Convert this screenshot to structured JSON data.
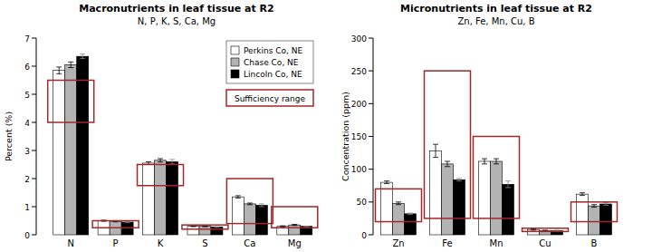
{
  "chart_data": [
    {
      "type": "bar",
      "title": "Macronutrients in leaf tissue at R2",
      "subtitle": "N, P, K, S, Ca, Mg",
      "y_label": "Percent (%)",
      "categories": [
        "N",
        "P",
        "K",
        "S",
        "Ca",
        "Mg"
      ],
      "series": [
        {
          "name": "Perkins Co, NE",
          "color": "#ffffff",
          "values": [
            5.85,
            0.5,
            2.55,
            0.3,
            1.35,
            0.3
          ],
          "errors": [
            0.12,
            0.02,
            0.05,
            0.01,
            0.04,
            0.02
          ]
        },
        {
          "name": "Chase Co, NE",
          "color": "#b3b3b3",
          "values": [
            6.05,
            0.48,
            2.65,
            0.3,
            1.1,
            0.35
          ],
          "errors": [
            0.1,
            0.02,
            0.06,
            0.01,
            0.03,
            0.02
          ]
        },
        {
          "name": "Lincoln Co, NE",
          "color": "#000000",
          "values": [
            6.35,
            0.45,
            2.6,
            0.28,
            1.05,
            0.3
          ],
          "errors": [
            0.08,
            0.02,
            0.08,
            0.01,
            0.05,
            0.01
          ]
        }
      ],
      "sufficiency_range": {
        "name": "Sufficiency range",
        "color": "#a0282a",
        "low": [
          4,
          0.25,
          1.75,
          0.2,
          0.4,
          0.25
        ],
        "high": [
          5.5,
          0.5,
          2.5,
          0.35,
          2,
          1
        ]
      },
      "ylim": [
        0,
        7
      ],
      "yticks": [
        0,
        1,
        2,
        3,
        4,
        5,
        6,
        7
      ],
      "legend": "top-right"
    },
    {
      "type": "bar",
      "title": "Micronutrients in leaf tissue at R2",
      "subtitle": "Zn, Fe, Mn, Cu, B",
      "y_label": "Concentration (ppm)",
      "categories": [
        "Zn",
        "Fe",
        "Mn",
        "Cu",
        "B"
      ],
      "series": [
        {
          "color": "#ffffff",
          "values": [
            80,
            128,
            112,
            8,
            62
          ],
          "errors": [
            2,
            10,
            4,
            1,
            2
          ]
        },
        {
          "color": "#b3b3b3",
          "values": [
            48,
            108,
            112,
            6,
            44
          ],
          "errors": [
            2,
            4,
            4,
            1,
            2
          ]
        },
        {
          "color": "#000000",
          "values": [
            32,
            84,
            77,
            6,
            47
          ],
          "errors": [
            1,
            2,
            5,
            1,
            2
          ]
        }
      ],
      "sufficiency_range": {
        "color": "#a0282a",
        "low": [
          20,
          25,
          25,
          5,
          20
        ],
        "high": [
          70,
          250,
          150,
          10,
          50
        ]
      },
      "ylim": [
        0,
        300
      ],
      "yticks": [
        0,
        50,
        100,
        150,
        200,
        250,
        300
      ]
    }
  ]
}
